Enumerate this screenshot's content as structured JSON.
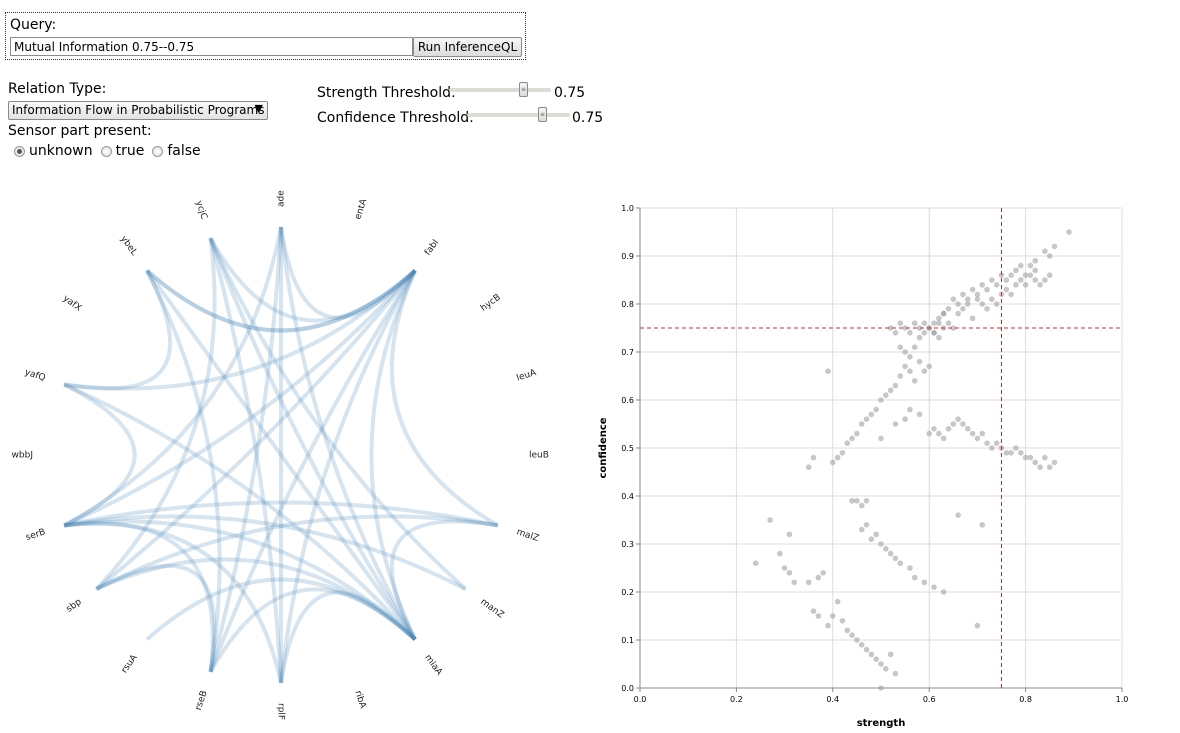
{
  "query": {
    "label": "Query:",
    "value": "Mutual Information 0.75--0.75",
    "run_label": "Run InferenceQL"
  },
  "relation": {
    "label": "Relation Type:",
    "selected": "Information Flow in Probabilistic Programs"
  },
  "sensor": {
    "label": "Sensor part present:",
    "options": [
      {
        "label": "unknown",
        "checked": true
      },
      {
        "label": "true",
        "checked": false
      },
      {
        "label": "false",
        "checked": false
      }
    ]
  },
  "thresholds": {
    "strength": {
      "label": "Strength Threshold:",
      "value": "0.75"
    },
    "confidence": {
      "label": "Confidence Threshold:",
      "value": "0.75"
    }
  },
  "network": {
    "node_labels": [
      "adeP",
      "entA",
      "fabI",
      "hycB",
      "leuA",
      "leuB",
      "malZ",
      "manZ",
      "miaA",
      "ribA",
      "rplF",
      "rseB",
      "rsuA",
      "sbp",
      "serB",
      "wbbJ",
      "yafQ",
      "yafX",
      "ybeL",
      "ycjC"
    ],
    "edges": [
      [
        "fabI",
        "ybeL"
      ],
      [
        "fabI",
        "ycjC"
      ],
      [
        "fabI",
        "adeP"
      ],
      [
        "fabI",
        "yafQ"
      ],
      [
        "fabI",
        "serB"
      ],
      [
        "fabI",
        "sbp"
      ],
      [
        "fabI",
        "rseB"
      ],
      [
        "fabI",
        "rplF"
      ],
      [
        "fabI",
        "miaA"
      ],
      [
        "fabI",
        "malZ"
      ],
      [
        "fabI",
        "ybeL"
      ],
      [
        "ybeL",
        "yafQ"
      ],
      [
        "ybeL",
        "rseB"
      ],
      [
        "ybeL",
        "miaA"
      ],
      [
        "ycjC",
        "sbp"
      ],
      [
        "ycjC",
        "rplF"
      ],
      [
        "ycjC",
        "miaA"
      ],
      [
        "ycjC",
        "manZ"
      ],
      [
        "adeP",
        "serB"
      ],
      [
        "adeP",
        "rplF"
      ],
      [
        "adeP",
        "rseB"
      ],
      [
        "adeP",
        "miaA"
      ],
      [
        "yafQ",
        "serB"
      ],
      [
        "yafQ",
        "miaA"
      ],
      [
        "serB",
        "malZ"
      ],
      [
        "serB",
        "miaA"
      ],
      [
        "serB",
        "rseB"
      ],
      [
        "serB",
        "manZ"
      ],
      [
        "serB",
        "rplF"
      ],
      [
        "sbp",
        "malZ"
      ],
      [
        "sbp",
        "miaA"
      ],
      [
        "sbp",
        "rseB"
      ],
      [
        "rseB",
        "miaA"
      ],
      [
        "rplF",
        "miaA"
      ],
      [
        "rsuA",
        "miaA"
      ],
      [
        "malZ",
        "miaA"
      ]
    ]
  },
  "chart_data": {
    "type": "scatter",
    "xlabel": "strength",
    "ylabel": "confidence",
    "xlim": [
      0,
      1
    ],
    "ylim": [
      0,
      1
    ],
    "xticks": [
      "0.0",
      "0.2",
      "0.4",
      "0.6",
      "0.8",
      "1.0"
    ],
    "yticks": [
      "0.0",
      "0.1",
      "0.2",
      "0.3",
      "0.4",
      "0.5",
      "0.6",
      "0.7",
      "0.8",
      "0.9",
      "1.0"
    ],
    "grid": true,
    "threshold_lines": {
      "x": 0.75,
      "y": 0.75,
      "color": "#d62728"
    },
    "point_color": "#999999",
    "points": [
      [
        0.89,
        0.95
      ],
      [
        0.86,
        0.92
      ],
      [
        0.85,
        0.9
      ],
      [
        0.84,
        0.91
      ],
      [
        0.82,
        0.89
      ],
      [
        0.81,
        0.88
      ],
      [
        0.82,
        0.87
      ],
      [
        0.8,
        0.86
      ],
      [
        0.79,
        0.88
      ],
      [
        0.78,
        0.87
      ],
      [
        0.77,
        0.86
      ],
      [
        0.76,
        0.85
      ],
      [
        0.75,
        0.86
      ],
      [
        0.74,
        0.84
      ],
      [
        0.73,
        0.85
      ],
      [
        0.72,
        0.83
      ],
      [
        0.71,
        0.84
      ],
      [
        0.7,
        0.82
      ],
      [
        0.69,
        0.83
      ],
      [
        0.68,
        0.81
      ],
      [
        0.67,
        0.82
      ],
      [
        0.66,
        0.8
      ],
      [
        0.65,
        0.81
      ],
      [
        0.64,
        0.79
      ],
      [
        0.63,
        0.78
      ],
      [
        0.62,
        0.77
      ],
      [
        0.61,
        0.76
      ],
      [
        0.6,
        0.75
      ],
      [
        0.59,
        0.74
      ],
      [
        0.58,
        0.73
      ],
      [
        0.57,
        0.71
      ],
      [
        0.56,
        0.69
      ],
      [
        0.55,
        0.67
      ],
      [
        0.54,
        0.65
      ],
      [
        0.53,
        0.63
      ],
      [
        0.52,
        0.62
      ],
      [
        0.51,
        0.61
      ],
      [
        0.5,
        0.6
      ],
      [
        0.49,
        0.58
      ],
      [
        0.48,
        0.57
      ],
      [
        0.47,
        0.56
      ],
      [
        0.46,
        0.55
      ],
      [
        0.45,
        0.53
      ],
      [
        0.44,
        0.52
      ],
      [
        0.43,
        0.51
      ],
      [
        0.42,
        0.49
      ],
      [
        0.41,
        0.48
      ],
      [
        0.4,
        0.47
      ],
      [
        0.39,
        0.66
      ],
      [
        0.36,
        0.48
      ],
      [
        0.35,
        0.46
      ],
      [
        0.38,
        0.24
      ],
      [
        0.37,
        0.23
      ],
      [
        0.35,
        0.22
      ],
      [
        0.32,
        0.22
      ],
      [
        0.31,
        0.24
      ],
      [
        0.3,
        0.25
      ],
      [
        0.29,
        0.28
      ],
      [
        0.27,
        0.35
      ],
      [
        0.24,
        0.26
      ],
      [
        0.31,
        0.32
      ],
      [
        0.37,
        0.15
      ],
      [
        0.36,
        0.16
      ],
      [
        0.39,
        0.13
      ],
      [
        0.4,
        0.15
      ],
      [
        0.41,
        0.18
      ],
      [
        0.42,
        0.14
      ],
      [
        0.43,
        0.12
      ],
      [
        0.44,
        0.11
      ],
      [
        0.45,
        0.1
      ],
      [
        0.46,
        0.09
      ],
      [
        0.47,
        0.08
      ],
      [
        0.48,
        0.07
      ],
      [
        0.49,
        0.06
      ],
      [
        0.5,
        0.05
      ],
      [
        0.51,
        0.04
      ],
      [
        0.52,
        0.07
      ],
      [
        0.53,
        0.03
      ],
      [
        0.5,
        0.0
      ],
      [
        0.47,
        0.39
      ],
      [
        0.46,
        0.38
      ],
      [
        0.45,
        0.39
      ],
      [
        0.44,
        0.39
      ],
      [
        0.46,
        0.33
      ],
      [
        0.47,
        0.34
      ],
      [
        0.48,
        0.31
      ],
      [
        0.49,
        0.32
      ],
      [
        0.5,
        0.3
      ],
      [
        0.51,
        0.29
      ],
      [
        0.52,
        0.28
      ],
      [
        0.53,
        0.27
      ],
      [
        0.54,
        0.26
      ],
      [
        0.56,
        0.25
      ],
      [
        0.57,
        0.23
      ],
      [
        0.59,
        0.22
      ],
      [
        0.61,
        0.21
      ],
      [
        0.63,
        0.2
      ],
      [
        0.66,
        0.36
      ],
      [
        0.71,
        0.34
      ],
      [
        0.7,
        0.13
      ],
      [
        0.6,
        0.53
      ],
      [
        0.61,
        0.54
      ],
      [
        0.62,
        0.53
      ],
      [
        0.63,
        0.52
      ],
      [
        0.64,
        0.54
      ],
      [
        0.65,
        0.55
      ],
      [
        0.66,
        0.56
      ],
      [
        0.67,
        0.55
      ],
      [
        0.68,
        0.54
      ],
      [
        0.69,
        0.53
      ],
      [
        0.7,
        0.52
      ],
      [
        0.71,
        0.53
      ],
      [
        0.72,
        0.51
      ],
      [
        0.73,
        0.5
      ],
      [
        0.74,
        0.51
      ],
      [
        0.75,
        0.5
      ],
      [
        0.76,
        0.49
      ],
      [
        0.77,
        0.49
      ],
      [
        0.78,
        0.5
      ],
      [
        0.79,
        0.49
      ],
      [
        0.8,
        0.48
      ],
      [
        0.81,
        0.48
      ],
      [
        0.82,
        0.47
      ],
      [
        0.83,
        0.46
      ],
      [
        0.84,
        0.48
      ],
      [
        0.85,
        0.46
      ],
      [
        0.86,
        0.47
      ],
      [
        0.5,
        0.52
      ],
      [
        0.53,
        0.55
      ],
      [
        0.55,
        0.56
      ],
      [
        0.56,
        0.58
      ],
      [
        0.58,
        0.57
      ],
      [
        0.56,
        0.66
      ],
      [
        0.55,
        0.7
      ],
      [
        0.54,
        0.71
      ],
      [
        0.57,
        0.64
      ],
      [
        0.58,
        0.68
      ],
      [
        0.59,
        0.66
      ],
      [
        0.6,
        0.67
      ],
      [
        0.61,
        0.74
      ],
      [
        0.62,
        0.73
      ],
      [
        0.63,
        0.78
      ],
      [
        0.64,
        0.76
      ],
      [
        0.65,
        0.75
      ],
      [
        0.66,
        0.78
      ],
      [
        0.67,
        0.79
      ],
      [
        0.68,
        0.8
      ],
      [
        0.69,
        0.77
      ],
      [
        0.7,
        0.81
      ],
      [
        0.71,
        0.8
      ],
      [
        0.72,
        0.79
      ],
      [
        0.73,
        0.81
      ],
      [
        0.74,
        0.8
      ],
      [
        0.75,
        0.82
      ],
      [
        0.76,
        0.83
      ],
      [
        0.77,
        0.82
      ],
      [
        0.78,
        0.84
      ],
      [
        0.79,
        0.85
      ],
      [
        0.8,
        0.84
      ],
      [
        0.81,
        0.86
      ],
      [
        0.82,
        0.85
      ],
      [
        0.83,
        0.84
      ],
      [
        0.84,
        0.85
      ],
      [
        0.85,
        0.86
      ],
      [
        0.52,
        0.75
      ],
      [
        0.53,
        0.74
      ],
      [
        0.54,
        0.76
      ],
      [
        0.55,
        0.75
      ],
      [
        0.56,
        0.74
      ],
      [
        0.57,
        0.76
      ],
      [
        0.58,
        0.75
      ],
      [
        0.59,
        0.76
      ],
      [
        0.6,
        0.75
      ],
      [
        0.61,
        0.74
      ],
      [
        0.62,
        0.76
      ],
      [
        0.63,
        0.75
      ]
    ]
  }
}
